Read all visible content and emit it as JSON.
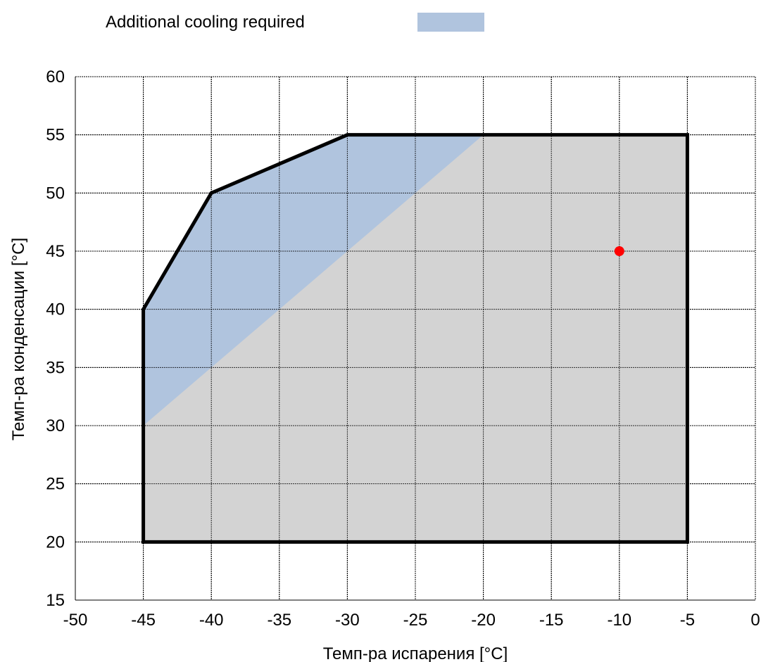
{
  "chart_data": {
    "type": "area",
    "xlabel": "Темп-ра испарения [°C]",
    "ylabel": "Темп-ра конденсации [°C]",
    "xlim": [
      -50,
      0
    ],
    "ylim": [
      15,
      60
    ],
    "x_ticks": [
      -50,
      -45,
      -40,
      -35,
      -30,
      -25,
      -20,
      -15,
      -10,
      -5,
      0
    ],
    "y_ticks": [
      15,
      20,
      25,
      30,
      35,
      40,
      45,
      50,
      55,
      60
    ],
    "grid": true,
    "legend": {
      "placement": "top",
      "entries": [
        {
          "label": "Additional cooling required",
          "color": "#b0c4de"
        }
      ]
    },
    "envelope": {
      "points": [
        [
          -45,
          20
        ],
        [
          -45,
          40
        ],
        [
          -40,
          50
        ],
        [
          -30,
          55
        ],
        [
          -5,
          55
        ],
        [
          -5,
          20
        ]
      ],
      "fill": "#d3d3d3",
      "stroke": "#000000"
    },
    "cooling_region": {
      "points": [
        [
          -45,
          30
        ],
        [
          -45,
          40
        ],
        [
          -40,
          50
        ],
        [
          -30,
          55
        ],
        [
          -20,
          55
        ]
      ],
      "fill": "#b0c4de"
    },
    "operating_point": {
      "x": -10,
      "y": 45,
      "color": "#ff0000"
    }
  }
}
